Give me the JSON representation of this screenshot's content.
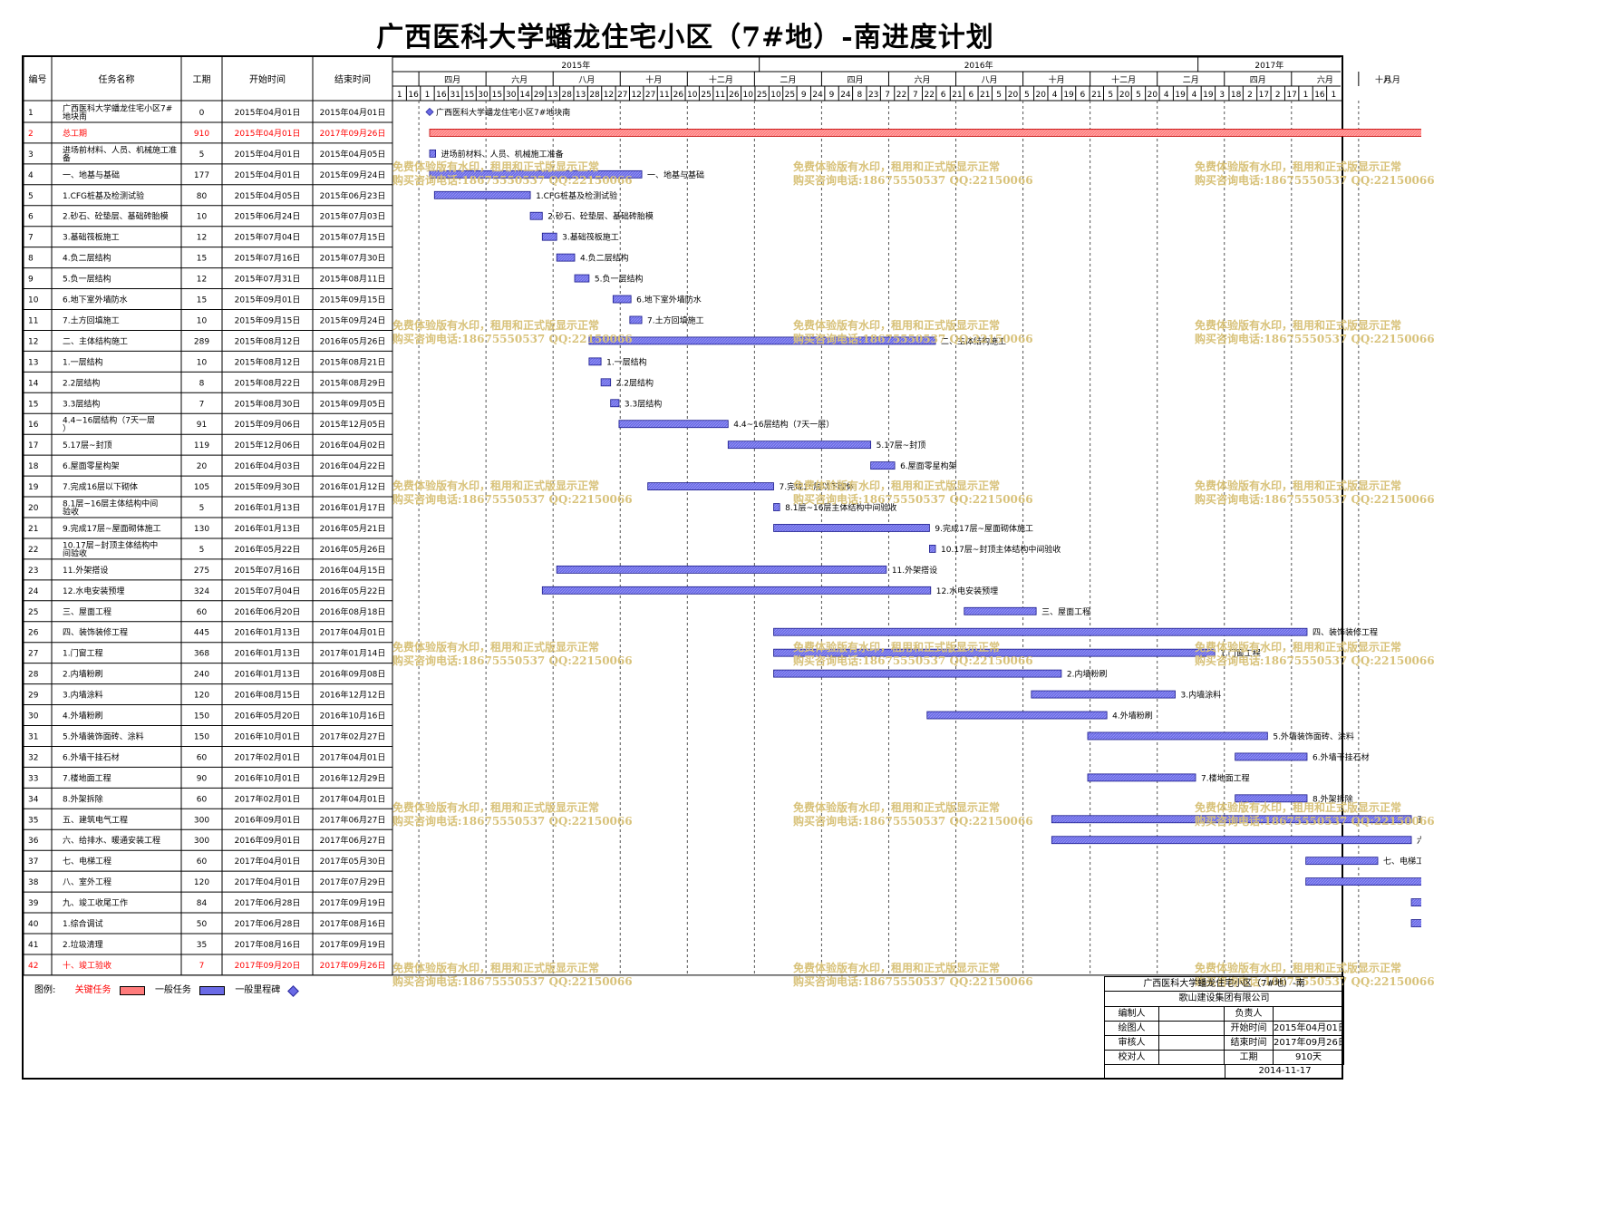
{
  "title": "广西医科大学蟠龙住宅小区（7#地）-南进度计划",
  "colors": {
    "critical": "#ff7b7b",
    "normal": "#6a6ae6",
    "milestone": "#6a6ae6",
    "critical_text": "#ff0000",
    "watermark": "#d8c27a"
  },
  "table": {
    "headers": [
      "编号",
      "任务名称",
      "工期",
      "开始时间",
      "结束时间"
    ]
  },
  "timeline": {
    "years": [
      {
        "label": "2015年",
        "start": "2015-03-01"
      },
      {
        "label": "2016年",
        "start": "2016-01-01"
      },
      {
        "label": "2017年",
        "start": "2017-01-01"
      }
    ],
    "months": [
      {
        "label": "四月",
        "start": "2015-03-23"
      },
      {
        "label": "六月",
        "start": "2015-05-18"
      },
      {
        "label": "八月",
        "start": "2015-07-13"
      },
      {
        "label": "十月",
        "start": "2015-09-07"
      },
      {
        "label": "十二月",
        "start": "2015-11-02"
      },
      {
        "label": "二月",
        "start": "2015-12-28"
      },
      {
        "label": "四月",
        "start": "2016-02-22"
      },
      {
        "label": "六月",
        "start": "2016-04-18"
      },
      {
        "label": "八月",
        "start": "2016-06-13"
      },
      {
        "label": "十月",
        "start": "2016-08-08"
      },
      {
        "label": "十二月",
        "start": "2016-10-03"
      },
      {
        "label": "二月",
        "start": "2016-11-28"
      },
      {
        "label": "四月",
        "start": "2017-01-23"
      },
      {
        "label": "六月",
        "start": "2017-03-20"
      },
      {
        "label": "八月",
        "start": "2017-05-15"
      },
      {
        "label": "十月",
        "start": "2017-07-10"
      }
    ],
    "ticks": [
      "1",
      "16",
      "1",
      "16",
      "31",
      "15",
      "30",
      "15",
      "30",
      "14",
      "29",
      "13",
      "28",
      "13",
      "28",
      "12",
      "27",
      "12",
      "27",
      "11",
      "26",
      "10",
      "25",
      "11",
      "26",
      "10",
      "25",
      "10",
      "25",
      "9",
      "24",
      "9",
      "24",
      "8",
      "23",
      "7",
      "22",
      "7",
      "22",
      "6",
      "21",
      "6",
      "21",
      "5",
      "20",
      "5",
      "20",
      "4",
      "19",
      "6",
      "21",
      "5",
      "20",
      "5",
      "20",
      "4",
      "19",
      "4",
      "19",
      "3",
      "18",
      "2",
      "17",
      "2",
      "17",
      "1",
      "16",
      "1"
    ]
  },
  "chart_data": {
    "type": "gantt",
    "title": "广西医科大学蟠龙住宅小区（7#地）-南进度计划",
    "x_range": [
      "2015-03-01",
      "2017-10-31"
    ],
    "tasks": [
      {
        "id": "1",
        "name": "广西医科大学蟠龙住宅小区7#地块南",
        "duration": "0",
        "start": "2015年04月01日",
        "end": "2015年04月01日",
        "s": "2015-04-01",
        "e": "2015-04-01",
        "kind": "milestone"
      },
      {
        "id": "2",
        "name": "总工期",
        "duration": "910",
        "start": "2015年04月01日",
        "end": "2017年09月26日",
        "s": "2015-04-01",
        "e": "2017-09-26",
        "kind": "critical"
      },
      {
        "id": "3",
        "name": "进场前材料、人员、机械施工准备",
        "duration": "5",
        "start": "2015年04月01日",
        "end": "2015年04月05日",
        "s": "2015-04-01",
        "e": "2015-04-05",
        "kind": "normal"
      },
      {
        "id": "4",
        "name": "一、地基与基础",
        "duration": "177",
        "start": "2015年04月01日",
        "end": "2015年09月24日",
        "s": "2015-04-01",
        "e": "2015-09-24",
        "kind": "normal"
      },
      {
        "id": "5",
        "name": "1.CFG桩基及检测试验",
        "duration": "80",
        "start": "2015年04月05日",
        "end": "2015年06月23日",
        "s": "2015-04-05",
        "e": "2015-06-23",
        "kind": "normal"
      },
      {
        "id": "6",
        "name": "2.砂石、砼垫层、基础砖胎模",
        "duration": "10",
        "start": "2015年06月24日",
        "end": "2015年07月03日",
        "s": "2015-06-24",
        "e": "2015-07-03",
        "kind": "normal"
      },
      {
        "id": "7",
        "name": "3.基础筏板施工",
        "duration": "12",
        "start": "2015年07月04日",
        "end": "2015年07月15日",
        "s": "2015-07-04",
        "e": "2015-07-15",
        "kind": "normal"
      },
      {
        "id": "8",
        "name": "4.负二层结构",
        "duration": "15",
        "start": "2015年07月16日",
        "end": "2015年07月30日",
        "s": "2015-07-16",
        "e": "2015-07-30",
        "kind": "normal"
      },
      {
        "id": "9",
        "name": "5.负一层结构",
        "duration": "12",
        "start": "2015年07月31日",
        "end": "2015年08月11日",
        "s": "2015-07-31",
        "e": "2015-08-11",
        "kind": "normal"
      },
      {
        "id": "10",
        "name": "6.地下室外墙防水",
        "duration": "15",
        "start": "2015年09月01日",
        "end": "2015年09月15日",
        "s": "2015-09-01",
        "e": "2015-09-15",
        "kind": "normal"
      },
      {
        "id": "11",
        "name": "7.土方回填施工",
        "duration": "10",
        "start": "2015年09月15日",
        "end": "2015年09月24日",
        "s": "2015-09-15",
        "e": "2015-09-24",
        "kind": "normal"
      },
      {
        "id": "12",
        "name": "二、主体结构施工",
        "duration": "289",
        "start": "2015年08月12日",
        "end": "2016年05月26日",
        "s": "2015-08-12",
        "e": "2016-05-26",
        "kind": "normal"
      },
      {
        "id": "13",
        "name": "1.一层结构",
        "duration": "10",
        "start": "2015年08月12日",
        "end": "2015年08月21日",
        "s": "2015-08-12",
        "e": "2015-08-21",
        "kind": "normal"
      },
      {
        "id": "14",
        "name": "2.2层结构",
        "duration": "8",
        "start": "2015年08月22日",
        "end": "2015年08月29日",
        "s": "2015-08-22",
        "e": "2015-08-29",
        "kind": "normal"
      },
      {
        "id": "15",
        "name": "3.3层结构",
        "duration": "7",
        "start": "2015年08月30日",
        "end": "2015年09月05日",
        "s": "2015-08-30",
        "e": "2015-09-05",
        "kind": "normal"
      },
      {
        "id": "16",
        "name": "4.4~16层结构（7天一层）",
        "duration": "91",
        "start": "2015年09月06日",
        "end": "2015年12月05日",
        "s": "2015-09-06",
        "e": "2015-12-05",
        "kind": "normal"
      },
      {
        "id": "17",
        "name": "5.17层~封顶",
        "duration": "119",
        "start": "2015年12月06日",
        "end": "2016年04月02日",
        "s": "2015-12-06",
        "e": "2016-04-02",
        "kind": "normal"
      },
      {
        "id": "18",
        "name": "6.屋面零星构架",
        "duration": "20",
        "start": "2016年04月03日",
        "end": "2016年04月22日",
        "s": "2016-04-03",
        "e": "2016-04-22",
        "kind": "normal"
      },
      {
        "id": "19",
        "name": "7.完成16层以下砌体",
        "duration": "105",
        "start": "2015年09月30日",
        "end": "2016年01月12日",
        "s": "2015-09-30",
        "e": "2016-01-12",
        "kind": "normal"
      },
      {
        "id": "20",
        "name": "8.1层~16层主体结构中间验收",
        "duration": "5",
        "start": "2016年01月13日",
        "end": "2016年01月17日",
        "s": "2016-01-13",
        "e": "2016-01-17",
        "kind": "normal"
      },
      {
        "id": "21",
        "name": "9.完成17层~屋面砌体施工",
        "duration": "130",
        "start": "2016年01月13日",
        "end": "2016年05月21日",
        "s": "2016-01-13",
        "e": "2016-05-21",
        "kind": "normal"
      },
      {
        "id": "22",
        "name": "10.17层~封顶主体结构中间验收",
        "duration": "5",
        "start": "2016年05月22日",
        "end": "2016年05月26日",
        "s": "2016-05-22",
        "e": "2016-05-26",
        "kind": "normal"
      },
      {
        "id": "23",
        "name": "11.外架搭设",
        "duration": "275",
        "start": "2015年07月16日",
        "end": "2016年04月15日",
        "s": "2015-07-16",
        "e": "2016-04-15",
        "kind": "normal"
      },
      {
        "id": "24",
        "name": "12.水电安装预埋",
        "duration": "324",
        "start": "2015年07月04日",
        "end": "2016年05月22日",
        "s": "2015-07-04",
        "e": "2016-05-22",
        "kind": "normal"
      },
      {
        "id": "25",
        "name": "三、屋面工程",
        "duration": "60",
        "start": "2016年06月20日",
        "end": "2016年08月18日",
        "s": "2016-06-20",
        "e": "2016-08-18",
        "kind": "normal"
      },
      {
        "id": "26",
        "name": "四、装饰装修工程",
        "duration": "445",
        "start": "2016年01月13日",
        "end": "2017年04月01日",
        "s": "2016-01-13",
        "e": "2017-04-01",
        "kind": "normal"
      },
      {
        "id": "27",
        "name": "1.门窗工程",
        "duration": "368",
        "start": "2016年01月13日",
        "end": "2017年01月14日",
        "s": "2016-01-13",
        "e": "2017-01-14",
        "kind": "normal"
      },
      {
        "id": "28",
        "name": "2.内墙粉刷",
        "duration": "240",
        "start": "2016年01月13日",
        "end": "2016年09月08日",
        "s": "2016-01-13",
        "e": "2016-09-08",
        "kind": "normal"
      },
      {
        "id": "29",
        "name": "3.内墙涂料",
        "duration": "120",
        "start": "2016年08月15日",
        "end": "2016年12月12日",
        "s": "2016-08-15",
        "e": "2016-12-12",
        "kind": "normal"
      },
      {
        "id": "30",
        "name": "4.外墙粉刷",
        "duration": "150",
        "start": "2016年05月20日",
        "end": "2016年10月16日",
        "s": "2016-05-20",
        "e": "2016-10-16",
        "kind": "normal"
      },
      {
        "id": "31",
        "name": "5.外墙装饰面砖、涂料",
        "duration": "150",
        "start": "2016年10月01日",
        "end": "2017年02月27日",
        "s": "2016-10-01",
        "e": "2017-02-27",
        "kind": "normal"
      },
      {
        "id": "32",
        "name": "6.外墙干挂石材",
        "duration": "60",
        "start": "2017年02月01日",
        "end": "2017年04月01日",
        "s": "2017-02-01",
        "e": "2017-04-01",
        "kind": "normal"
      },
      {
        "id": "33",
        "name": "7.楼地面工程",
        "duration": "90",
        "start": "2016年10月01日",
        "end": "2016年12月29日",
        "s": "2016-10-01",
        "e": "2016-12-29",
        "kind": "normal"
      },
      {
        "id": "34",
        "name": "8.外架拆除",
        "duration": "60",
        "start": "2017年02月01日",
        "end": "2017年04月01日",
        "s": "2017-02-01",
        "e": "2017-04-01",
        "kind": "normal"
      },
      {
        "id": "35",
        "name": "五、建筑电气工程",
        "duration": "300",
        "start": "2016年09月01日",
        "end": "2017年06月27日",
        "s": "2016-09-01",
        "e": "2017-06-27",
        "kind": "normal"
      },
      {
        "id": "36",
        "name": "六、给排水、暖通安装工程",
        "duration": "300",
        "start": "2016年09月01日",
        "end": "2017年06月27日",
        "s": "2016-09-01",
        "e": "2017-06-27",
        "kind": "normal"
      },
      {
        "id": "37",
        "name": "七、电梯工程",
        "duration": "60",
        "start": "2017年04月01日",
        "end": "2017年05月30日",
        "s": "2017-04-01",
        "e": "2017-05-30",
        "kind": "normal"
      },
      {
        "id": "38",
        "name": "八、室外工程",
        "duration": "120",
        "start": "2017年04月01日",
        "end": "2017年07月29日",
        "s": "2017-04-01",
        "e": "2017-07-29",
        "kind": "normal"
      },
      {
        "id": "39",
        "name": "九、竣工收尾工作",
        "duration": "84",
        "start": "2017年06月28日",
        "end": "2017年09月19日",
        "s": "2017-06-28",
        "e": "2017-09-19",
        "kind": "normal"
      },
      {
        "id": "40",
        "name": "1.综合调试",
        "duration": "50",
        "start": "2017年06月28日",
        "end": "2017年08月16日",
        "s": "2017-06-28",
        "e": "2017-08-16",
        "kind": "normal"
      },
      {
        "id": "41",
        "name": "2.垃圾清理",
        "duration": "35",
        "start": "2017年08月16日",
        "end": "2017年09月19日",
        "s": "2017-08-16",
        "e": "2017-09-19",
        "kind": "normal"
      },
      {
        "id": "42",
        "name": "十、竣工验收",
        "duration": "7",
        "start": "2017年09月20日",
        "end": "2017年09月26日",
        "s": "2017-09-20",
        "e": "2017-09-26",
        "kind": "critical"
      }
    ]
  },
  "legend": {
    "label": "图例:",
    "critical": "关键任务",
    "normal": "一般任务",
    "milestone": "一般里程碑"
  },
  "watermark": {
    "line1": "免费体验版有水印，租用和正式版显示正常",
    "line2": "购买咨询电话:18675550537 QQ:22150066"
  },
  "title_block": {
    "project": "广西医科大学蟠龙住宅小区（7#地）-南",
    "company": "歌山建设集团有限公司",
    "compiler_label": "编制人",
    "compiler": "",
    "leader_label": "负责人",
    "leader": "",
    "drawer_label": "绘图人",
    "drawer": "",
    "start_label": "开始时间",
    "start": "2015年04月01日",
    "reviewer_label": "审核人",
    "reviewer": "",
    "end_label": "结束时间",
    "end": "2017年09月26日",
    "checker_label": "校对人",
    "checker": "",
    "duration_label": "工期",
    "duration": "910天",
    "date": "2014-11-17"
  }
}
